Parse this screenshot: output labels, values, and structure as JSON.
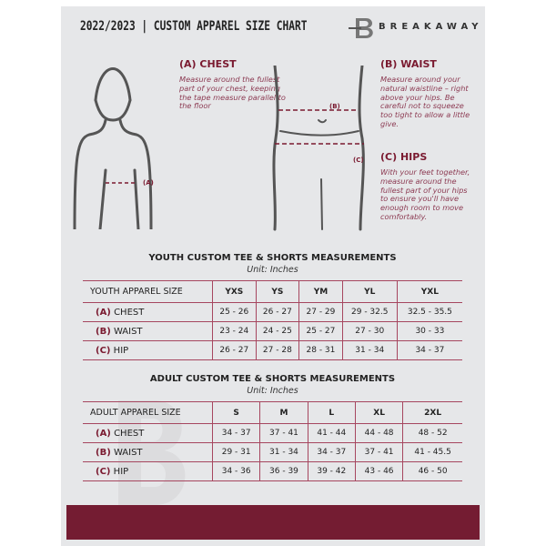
{
  "header": {
    "title": "2022/2023  |  CUSTOM APPAREL SIZE CHART",
    "brand": "BREAKAWAY",
    "logo_letter": "B"
  },
  "guides": {
    "chest": {
      "heading": "(A) CHEST",
      "text": "Measure around the fullest part of your chest, keeping the tape measure parallel to the floor",
      "marker": "(A)"
    },
    "waist": {
      "heading": "(B) WAIST",
      "text": "Measure around your natural waistline – right above your hips. Be careful not to squeeze too tight to allow a little give.",
      "marker": "(B)"
    },
    "hips": {
      "heading": "(C) HIPS",
      "text": "With your feet together, measure around the fullest part of your hips to ensure you'll have enough room to move comfortably.",
      "marker": "(C)"
    }
  },
  "youth": {
    "title": "YOUTH CUSTOM TEE & SHORTS MEASUREMENTS",
    "unit": "Unit: Inches",
    "header": [
      "YOUTH APPAREL SIZE",
      "YXS",
      "YS",
      "YM",
      "YL",
      "YXL"
    ],
    "rows": [
      {
        "letter": "(A)",
        "label": "CHEST",
        "values": [
          "25 - 26",
          "26 - 27",
          "27 - 29",
          "29 - 32.5",
          "32.5 - 35.5"
        ]
      },
      {
        "letter": "(B)",
        "label": "WAIST",
        "values": [
          "23 - 24",
          "24 - 25",
          "25 - 27",
          "27 - 30",
          "30 - 33"
        ]
      },
      {
        "letter": "(C)",
        "label": "HIP",
        "values": [
          "26 - 27",
          "27 - 28",
          "28 - 31",
          "31 - 34",
          "34 - 37"
        ]
      }
    ]
  },
  "adult": {
    "title": "ADULT CUSTOM TEE & SHORTS MEASUREMENTS",
    "unit": "Unit: Inches",
    "header": [
      "ADULT APPAREL SIZE",
      "S",
      "M",
      "L",
      "XL",
      "2XL"
    ],
    "rows": [
      {
        "letter": "(A)",
        "label": "CHEST",
        "values": [
          "34 - 37",
          "37 - 41",
          "41 - 44",
          "44 - 48",
          "48 - 52"
        ]
      },
      {
        "letter": "(B)",
        "label": "WAIST",
        "values": [
          "29 - 31",
          "31 - 34",
          "34 - 37",
          "37 - 41",
          "41 - 45.5"
        ]
      },
      {
        "letter": "(C)",
        "label": "HIP",
        "values": [
          "34 - 36",
          "36 - 39",
          "39 - 42",
          "43 - 46",
          "46 - 50"
        ]
      }
    ]
  },
  "colors": {
    "accent": "#741c32",
    "panel": "#e6e7e9",
    "text": "#222222"
  }
}
